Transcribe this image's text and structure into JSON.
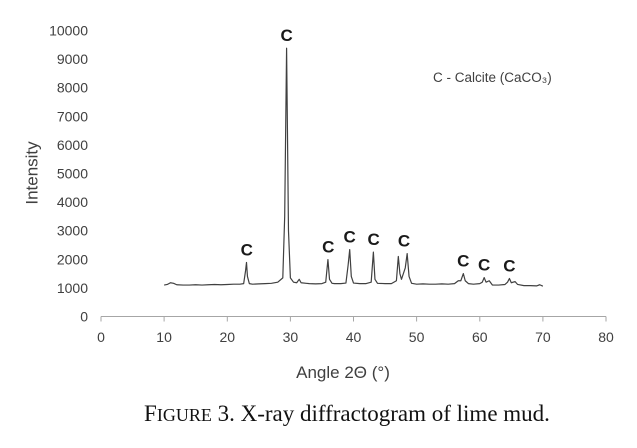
{
  "chart_data": {
    "type": "line",
    "xlabel": "Angle 2Θ (°)",
    "ylabel": "Intensity",
    "xlim": [
      0,
      80
    ],
    "ylim": [
      0,
      10000
    ],
    "xticks": [
      0,
      10,
      20,
      30,
      40,
      50,
      60,
      70,
      80
    ],
    "yticks": [
      0,
      1000,
      2000,
      3000,
      4000,
      5000,
      6000,
      7000,
      8000,
      9000,
      10000
    ],
    "grid": false,
    "series": [
      {
        "color": "#404040",
        "x": [
          10,
          10.5,
          11,
          11.5,
          12,
          13,
          14,
          15,
          16,
          17,
          18,
          19,
          20,
          21,
          22,
          22.6,
          22.9,
          23.05,
          23.2,
          23.5,
          24,
          25,
          26,
          27,
          28,
          28.8,
          29.1,
          29.4,
          29.7,
          30,
          30.5,
          31,
          31.4,
          31.7,
          32.5,
          33,
          34,
          35,
          35.6,
          35.95,
          36.2,
          36.6,
          37,
          38,
          38.8,
          39.15,
          39.4,
          39.65,
          40,
          41,
          42,
          42.8,
          43.15,
          43.4,
          43.8,
          45,
          46,
          46.8,
          47.1,
          47.35,
          47.6,
          48.2,
          48.5,
          48.8,
          49.2,
          50,
          51,
          52,
          53,
          54,
          55,
          56,
          56.6,
          57,
          57.4,
          57.7,
          58.2,
          59,
          60,
          60.4,
          60.7,
          61,
          61.5,
          62,
          63,
          64,
          64.4,
          64.7,
          65,
          65.6,
          66,
          67,
          68,
          69,
          69.5,
          70
        ],
        "y": [
          1100,
          1120,
          1180,
          1160,
          1110,
          1100,
          1100,
          1110,
          1100,
          1110,
          1120,
          1110,
          1120,
          1130,
          1130,
          1150,
          1600,
          1890,
          1400,
          1150,
          1130,
          1140,
          1150,
          1160,
          1200,
          1350,
          3500,
          9380,
          3000,
          1350,
          1200,
          1180,
          1300,
          1180,
          1160,
          1150,
          1140,
          1150,
          1200,
          1990,
          1300,
          1160,
          1150,
          1150,
          1170,
          1800,
          2340,
          1400,
          1170,
          1150,
          1150,
          1200,
          2250,
          1300,
          1160,
          1150,
          1150,
          1250,
          2100,
          1500,
          1300,
          1700,
          2200,
          1400,
          1160,
          1130,
          1140,
          1130,
          1130,
          1140,
          1130,
          1150,
          1250,
          1250,
          1500,
          1250,
          1150,
          1130,
          1150,
          1200,
          1360,
          1200,
          1250,
          1100,
          1100,
          1120,
          1200,
          1330,
          1180,
          1220,
          1120,
          1080,
          1080,
          1070,
          1110,
          1060
        ]
      }
    ],
    "annotations": [
      {
        "text": "C",
        "x": 23.1
      },
      {
        "text": "C",
        "x": 29.4
      },
      {
        "text": "C",
        "x": 36.0
      },
      {
        "text": "C",
        "x": 39.4
      },
      {
        "text": "C",
        "x": 43.2
      },
      {
        "text": "C",
        "x": 48.0
      },
      {
        "text": "C",
        "x": 57.4
      },
      {
        "text": "C",
        "x": 60.7
      },
      {
        "text": "C",
        "x": 64.7
      }
    ],
    "note": "C - Calcite (CaCO₃)",
    "note_placement": "top-right"
  },
  "caption": {
    "label": "FIGURE",
    "text": "3. X-ray diffractogram of lime mud."
  }
}
